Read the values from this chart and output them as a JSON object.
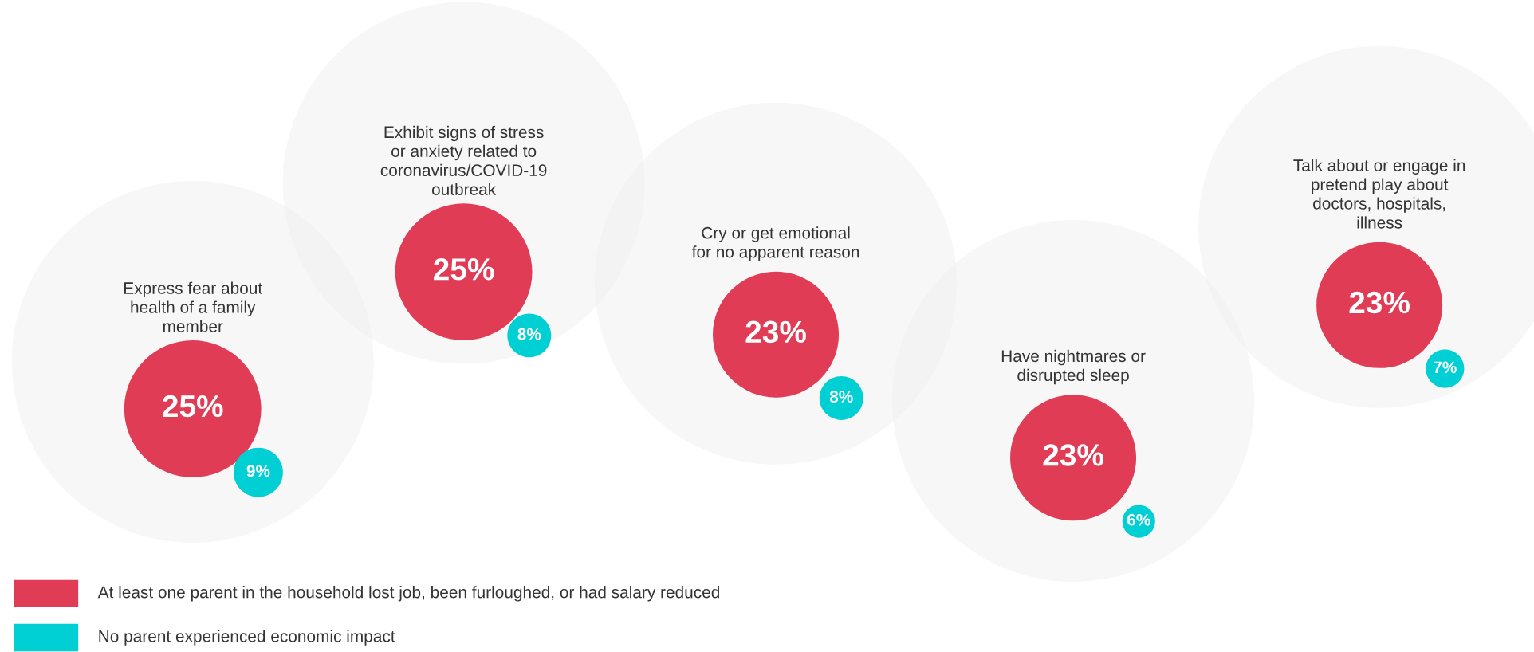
{
  "chart_data": {
    "type": "other",
    "categories": [
      "Express fear about\nhealth of a family\nmember",
      "Exhibit signs of stress\nor anxiety related to\ncoronavirus/COVID-19\noutbreak",
      "Cry or get emotional\nfor no apparent reason",
      "Have nightmares or\ndisrupted sleep",
      "Talk about or engage in\npretend play about\ndoctors, hospitals,\nillness"
    ],
    "series": [
      {
        "name": "At least one parent in the household lost job, been furloughed, or had salary reduced",
        "color": "#e03c55",
        "values": [
          25,
          25,
          23,
          23,
          23
        ],
        "value_labels": [
          "25%",
          "25%",
          "23%",
          "23%",
          "23%"
        ]
      },
      {
        "name": "No parent experienced economic impact",
        "color": "#00cfd3",
        "values": [
          9,
          8,
          8,
          6,
          7
        ],
        "value_labels": [
          "9%",
          "8%",
          "8%",
          "6%",
          "7%"
        ]
      }
    ],
    "legend": "bottom left"
  }
}
